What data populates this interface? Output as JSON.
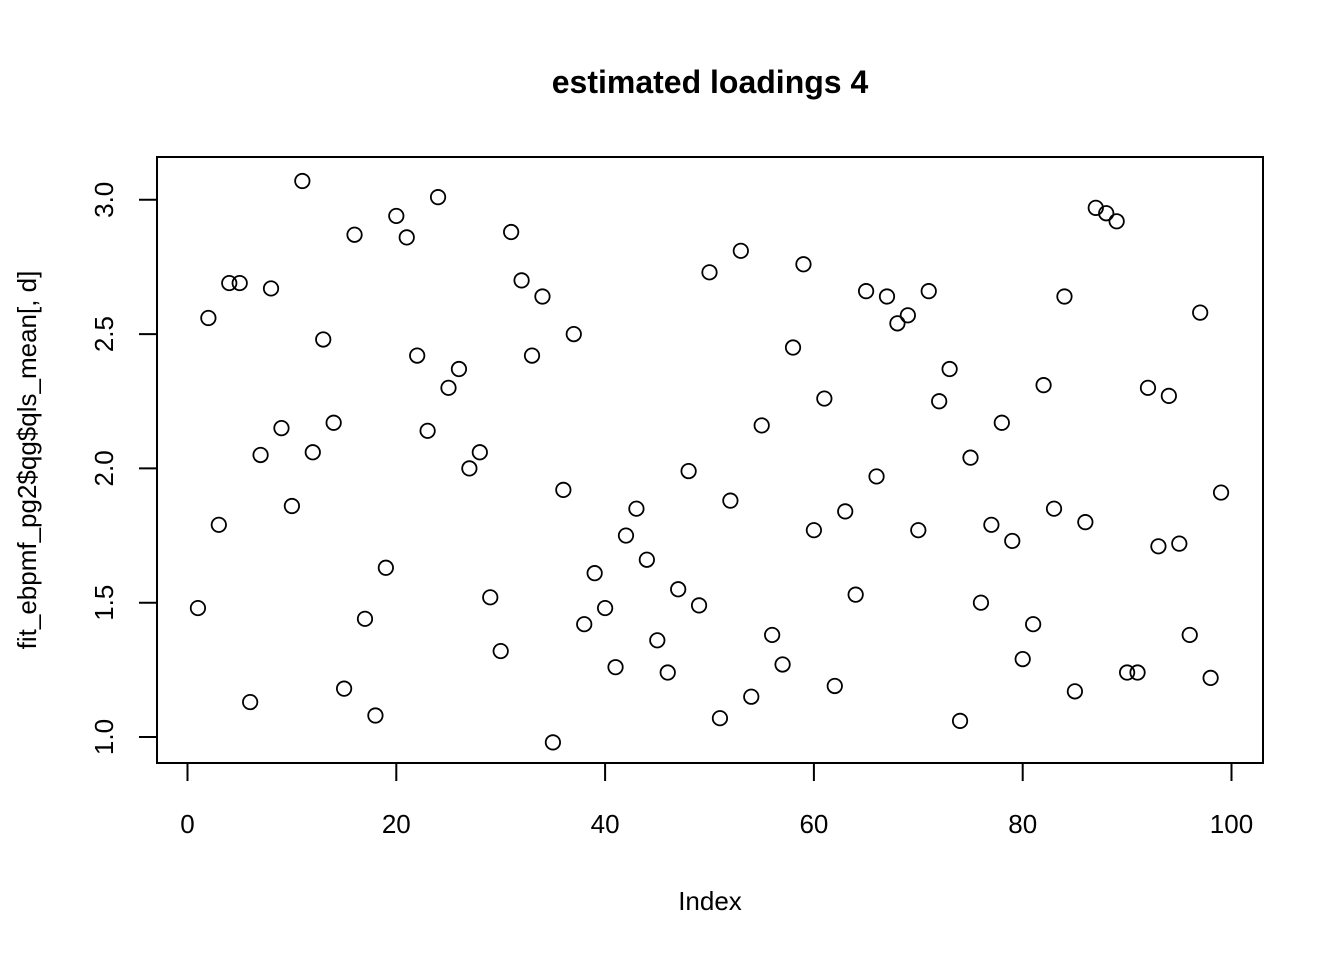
{
  "chart_data": {
    "type": "scatter",
    "title": "estimated loadings 4",
    "xlabel": "Index",
    "ylabel": "fit_ebpmf_pg2$qg$qls_mean[, d]",
    "xlim": [
      0,
      100
    ],
    "ylim": [
      1.0,
      3.0
    ],
    "xticks": [
      "0",
      "20",
      "40",
      "60",
      "80",
      "100"
    ],
    "yticks": [
      "1.0",
      "1.5",
      "2.0",
      "2.5",
      "3.0"
    ],
    "marker": "open-circle",
    "grid": false,
    "legend": "none",
    "x": [
      1,
      2,
      3,
      4,
      5,
      6,
      7,
      8,
      9,
      10,
      11,
      12,
      13,
      14,
      15,
      16,
      17,
      18,
      19,
      20,
      21,
      22,
      23,
      24,
      25,
      26,
      27,
      28,
      29,
      30,
      31,
      32,
      33,
      34,
      35,
      36,
      37,
      38,
      39,
      40,
      41,
      42,
      43,
      44,
      45,
      46,
      47,
      48,
      49,
      50,
      51,
      52,
      53,
      54,
      55,
      56,
      57,
      58,
      59,
      60,
      61,
      62,
      63,
      64,
      65,
      66,
      67,
      68,
      69,
      70,
      71,
      72,
      73,
      74,
      75,
      76,
      77,
      78,
      79,
      80,
      81,
      82,
      83,
      84,
      85,
      86,
      87,
      88,
      89,
      90,
      91,
      92,
      93,
      94,
      95,
      96,
      97,
      98,
      99
    ],
    "y": [
      1.48,
      2.56,
      1.79,
      2.69,
      2.69,
      1.13,
      2.05,
      2.67,
      2.15,
      1.86,
      3.07,
      2.06,
      2.48,
      2.17,
      1.18,
      2.87,
      1.44,
      1.08,
      1.63,
      2.94,
      2.86,
      2.42,
      2.14,
      3.01,
      2.3,
      2.37,
      2.0,
      2.06,
      1.52,
      1.32,
      2.88,
      2.7,
      2.42,
      2.64,
      0.98,
      1.92,
      2.5,
      1.42,
      1.61,
      1.48,
      1.26,
      1.75,
      1.85,
      1.66,
      1.36,
      1.24,
      1.55,
      1.99,
      1.49,
      2.73,
      1.07,
      1.88,
      2.81,
      1.15,
      2.16,
      1.38,
      1.27,
      2.45,
      2.76,
      1.77,
      2.26,
      1.19,
      1.84,
      1.53,
      2.66,
      1.97,
      2.64,
      2.54,
      2.57,
      1.77,
      2.66,
      2.25,
      2.37,
      1.06,
      2.04,
      1.5,
      1.79,
      2.17,
      1.73,
      1.29,
      1.42,
      2.31,
      1.85,
      2.64,
      1.17,
      1.8,
      2.97,
      2.95,
      2.92,
      1.24,
      1.24,
      2.3,
      1.71,
      2.27,
      1.72,
      1.38,
      2.58,
      1.22,
      1.91
    ]
  }
}
